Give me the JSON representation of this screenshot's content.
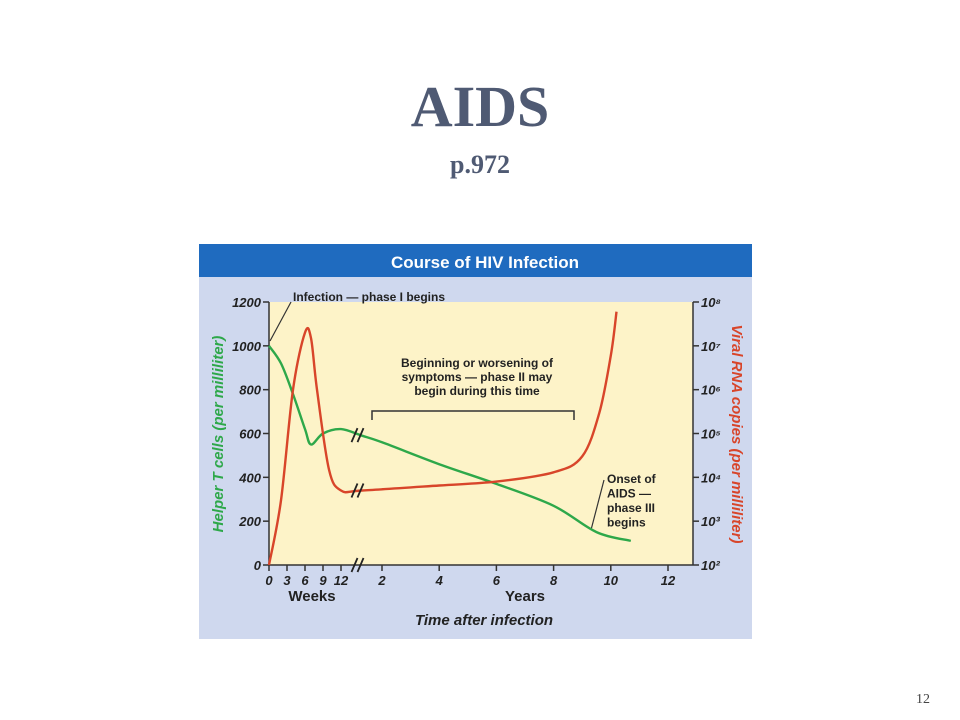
{
  "slide": {
    "title": "AIDS",
    "subtitle": "p.972",
    "page_number": "12"
  },
  "colors": {
    "title": "#4f5a73",
    "banner": "#1f6bbf",
    "frame": "#cfd8ee",
    "plot_bg": "#fdf3c8",
    "tcell_line": "#2ea84a",
    "viral_line": "#d8452a"
  },
  "chart_data": {
    "type": "line",
    "title": "Course of HIV Infection",
    "xlabel": "Time after infection",
    "x_units": [
      "Weeks",
      "Years"
    ],
    "x_ticks_weeks": [
      "0",
      "3",
      "6",
      "9",
      "12"
    ],
    "x_ticks_years": [
      "2",
      "4",
      "6",
      "8",
      "10",
      "12"
    ],
    "ylabel_left": "Helper T cells (per milliliter)",
    "ylabel_right": "Viral RNA copies (per milliliter)",
    "ylim_left": [
      0,
      1200
    ],
    "y_ticks_left": [
      "0",
      "200",
      "400",
      "600",
      "800",
      "1000",
      "1200"
    ],
    "y_right_scale": "log",
    "y_ticks_right": [
      "10²",
      "10³",
      "10⁴",
      "10⁵",
      "10⁶",
      "10⁷",
      "10⁸"
    ],
    "axis_break": "between 12 weeks and ~1.5 years",
    "series": [
      {
        "name": "Helper T cells",
        "axis": "left",
        "color": "#2ea84a",
        "points": [
          {
            "week": 0,
            "value": 1000
          },
          {
            "week": 2,
            "value": 920
          },
          {
            "week": 4,
            "value": 780
          },
          {
            "week": 6,
            "value": 620
          },
          {
            "week": 7,
            "value": 550
          },
          {
            "week": 9,
            "value": 600
          },
          {
            "week": 12,
            "value": 620
          },
          {
            "year": 1.3,
            "value": 590
          },
          {
            "year": 2,
            "value": 560
          },
          {
            "year": 4,
            "value": 460
          },
          {
            "year": 6,
            "value": 370
          },
          {
            "year": 8,
            "value": 270
          },
          {
            "year": 9.5,
            "value": 150
          },
          {
            "year": 10.7,
            "value": 110
          }
        ]
      },
      {
        "name": "Viral RNA copies",
        "axis": "right",
        "color": "#d8452a",
        "points": [
          {
            "week": 0,
            "value": 100
          },
          {
            "week": 2,
            "value": 3000
          },
          {
            "week": 4,
            "value": 1000000
          },
          {
            "week": 6,
            "value": 20000000
          },
          {
            "week": 7,
            "value": 15000000
          },
          {
            "week": 8,
            "value": 1000000
          },
          {
            "week": 10,
            "value": 15000
          },
          {
            "week": 12,
            "value": 5000
          },
          {
            "year": 1.3,
            "value": 5000
          },
          {
            "year": 4,
            "value": 6500
          },
          {
            "year": 6,
            "value": 8000
          },
          {
            "year": 8,
            "value": 13000
          },
          {
            "year": 9,
            "value": 30000
          },
          {
            "year": 9.6,
            "value": 300000
          },
          {
            "year": 10,
            "value": 6000000
          },
          {
            "year": 10.2,
            "value": 60000000
          }
        ]
      }
    ],
    "annotations": [
      {
        "text": [
          "Infection — phase I begins"
        ]
      },
      {
        "text": [
          "Beginning or worsening of",
          "symptoms — phase II may",
          "begin during this time"
        ]
      },
      {
        "text": [
          "Onset of",
          "AIDS —",
          "phase III",
          "begins"
        ]
      }
    ],
    "grid": false,
    "legend": "none"
  }
}
